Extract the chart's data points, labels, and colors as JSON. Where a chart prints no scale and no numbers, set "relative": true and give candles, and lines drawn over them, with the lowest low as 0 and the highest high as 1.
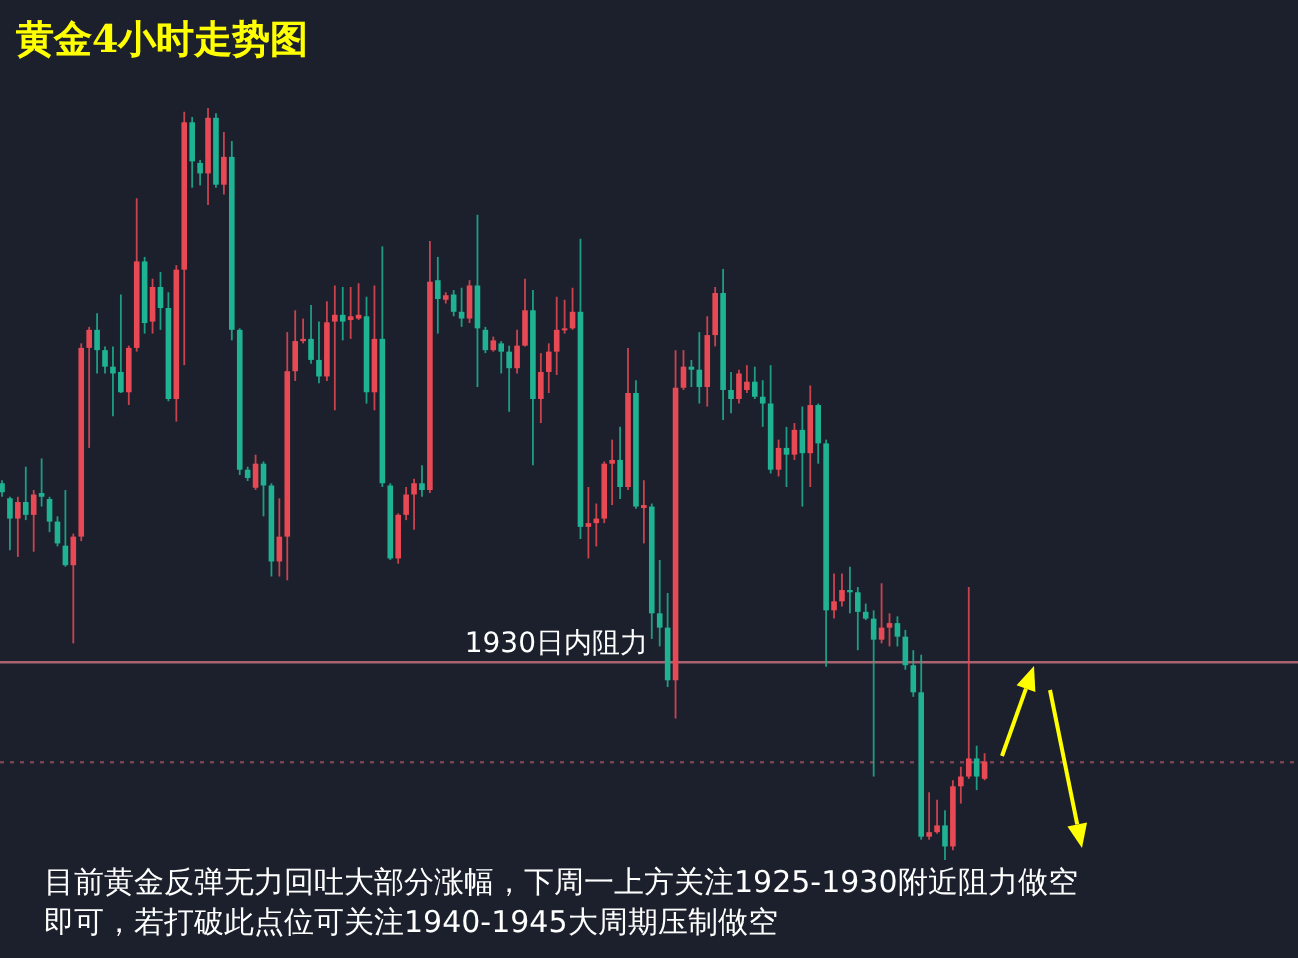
{
  "chart_data": {
    "type": "candlestick",
    "title": "黄金4小时走势图",
    "relative": true,
    "categories": [
      null,
      null,
      null,
      null,
      null,
      null,
      null,
      null,
      null,
      null,
      null,
      null,
      null,
      null,
      null,
      null,
      null,
      null,
      null,
      null,
      null,
      null,
      null,
      null,
      null,
      null,
      null,
      null,
      null,
      null,
      null,
      null,
      null,
      null,
      null,
      null,
      null,
      null,
      null,
      null,
      null,
      null,
      null,
      null,
      null,
      null,
      null,
      null,
      null,
      null,
      null,
      null,
      null,
      null,
      null,
      null,
      null,
      null,
      null,
      null,
      null,
      null,
      null,
      null,
      null,
      null,
      null,
      null,
      null,
      null,
      null,
      null,
      null,
      null,
      null,
      null,
      null,
      null,
      null,
      null,
      null,
      null,
      null,
      null,
      null,
      null,
      null,
      null,
      null,
      null,
      null,
      null,
      null,
      null,
      null,
      null,
      null,
      null,
      null,
      null,
      null,
      null,
      null,
      null,
      null,
      null,
      null,
      null,
      null,
      null,
      null,
      null,
      null,
      null,
      null,
      null,
      null,
      null,
      null,
      null,
      null,
      null,
      null,
      null,
      null
    ],
    "ohlc": [
      [
        0.501,
        0.505,
        0.483,
        0.489
      ],
      [
        0.481,
        0.483,
        0.412,
        0.454
      ],
      [
        0.454,
        0.483,
        0.403,
        0.476
      ],
      [
        0.476,
        0.523,
        0.452,
        0.459
      ],
      [
        0.459,
        0.492,
        0.41,
        0.486
      ],
      [
        0.488,
        0.534,
        0.47,
        0.483
      ],
      [
        0.48,
        0.483,
        0.436,
        0.45
      ],
      [
        0.45,
        0.457,
        0.417,
        0.421
      ],
      [
        0.418,
        0.492,
        0.39,
        0.392
      ],
      [
        0.392,
        0.434,
        0.288,
        0.43
      ],
      [
        0.43,
        0.687,
        0.424,
        0.681
      ],
      [
        0.681,
        0.709,
        0.548,
        0.705
      ],
      [
        0.705,
        0.727,
        0.647,
        0.678
      ],
      [
        0.678,
        0.683,
        0.647,
        0.656
      ],
      [
        0.656,
        0.683,
        0.59,
        0.647
      ],
      [
        0.649,
        0.752,
        0.621,
        0.622
      ],
      [
        0.622,
        0.684,
        0.605,
        0.681
      ],
      [
        0.681,
        0.88,
        0.676,
        0.796
      ],
      [
        0.796,
        0.802,
        0.7,
        0.714
      ],
      [
        0.716,
        0.773,
        0.7,
        0.762
      ],
      [
        0.762,
        0.782,
        0.705,
        0.734
      ],
      [
        0.734,
        0.755,
        0.61,
        0.613
      ],
      [
        0.613,
        0.791,
        0.583,
        0.785
      ],
      [
        0.785,
        0.995,
        0.658,
        0.981
      ],
      [
        0.981,
        0.988,
        0.894,
        0.929
      ],
      [
        0.927,
        0.931,
        0.897,
        0.913
      ],
      [
        0.913,
        1.0,
        0.871,
        0.987
      ],
      [
        0.987,
        0.993,
        0.894,
        0.898
      ],
      [
        0.898,
        0.968,
        0.885,
        0.935
      ],
      [
        0.935,
        0.956,
        0.691,
        0.705
      ],
      [
        0.705,
        0.707,
        0.512,
        0.519
      ],
      [
        0.519,
        0.523,
        0.504,
        0.508
      ],
      [
        0.495,
        0.539,
        0.492,
        0.527
      ],
      [
        0.527,
        0.53,
        0.457,
        0.498
      ],
      [
        0.498,
        0.501,
        0.377,
        0.397
      ],
      [
        0.397,
        0.481,
        0.377,
        0.43
      ],
      [
        0.43,
        0.702,
        0.372,
        0.65
      ],
      [
        0.65,
        0.731,
        0.637,
        0.69
      ],
      [
        0.69,
        0.72,
        0.687,
        0.693
      ],
      [
        0.693,
        0.738,
        0.66,
        0.665
      ],
      [
        0.665,
        0.716,
        0.634,
        0.643
      ],
      [
        0.643,
        0.743,
        0.637,
        0.715
      ],
      [
        0.716,
        0.764,
        0.598,
        0.725
      ],
      [
        0.725,
        0.762,
        0.691,
        0.716
      ],
      [
        0.718,
        0.762,
        0.693,
        0.723
      ],
      [
        0.72,
        0.767,
        0.718,
        0.725
      ],
      [
        0.723,
        0.749,
        0.607,
        0.622
      ],
      [
        0.622,
        0.764,
        0.598,
        0.693
      ],
      [
        0.693,
        0.816,
        0.496,
        0.501
      ],
      [
        0.498,
        0.501,
        0.399,
        0.401
      ],
      [
        0.401,
        0.461,
        0.394,
        0.459
      ],
      [
        0.459,
        0.496,
        0.452,
        0.486
      ],
      [
        0.486,
        0.507,
        0.439,
        0.501
      ],
      [
        0.501,
        0.525,
        0.483,
        0.492
      ],
      [
        0.492,
        0.823,
        0.488,
        0.769
      ],
      [
        0.771,
        0.802,
        0.7,
        0.746
      ],
      [
        0.745,
        0.755,
        0.74,
        0.751
      ],
      [
        0.752,
        0.758,
        0.723,
        0.729
      ],
      [
        0.729,
        0.761,
        0.709,
        0.72
      ],
      [
        0.72,
        0.771,
        0.714,
        0.764
      ],
      [
        0.764,
        0.858,
        0.629,
        0.707
      ],
      [
        0.705,
        0.709,
        0.674,
        0.678
      ],
      [
        0.678,
        0.696,
        0.676,
        0.691
      ],
      [
        0.687,
        0.69,
        0.647,
        0.676
      ],
      [
        0.676,
        0.684,
        0.596,
        0.654
      ],
      [
        0.654,
        0.705,
        0.647,
        0.684
      ],
      [
        0.684,
        0.773,
        0.683,
        0.731
      ],
      [
        0.731,
        0.758,
        0.525,
        0.613
      ],
      [
        0.613,
        0.674,
        0.581,
        0.649
      ],
      [
        0.649,
        0.687,
        0.621,
        0.676
      ],
      [
        0.676,
        0.749,
        0.645,
        0.705
      ],
      [
        0.705,
        0.745,
        0.7,
        0.707
      ],
      [
        0.707,
        0.761,
        0.705,
        0.729
      ],
      [
        0.729,
        0.826,
        0.427,
        0.443
      ],
      [
        0.443,
        0.496,
        0.401,
        0.448
      ],
      [
        0.448,
        0.474,
        0.417,
        0.454
      ],
      [
        0.454,
        0.53,
        0.448,
        0.527
      ],
      [
        0.527,
        0.559,
        0.472,
        0.532
      ],
      [
        0.532,
        0.576,
        0.48,
        0.496
      ],
      [
        0.496,
        0.681,
        0.492,
        0.621
      ],
      [
        0.621,
        0.638,
        0.467,
        0.47
      ],
      [
        0.468,
        0.505,
        0.421,
        0.472
      ],
      [
        0.47,
        0.474,
        0.294,
        0.328
      ],
      [
        0.328,
        0.399,
        0.284,
        0.309
      ],
      [
        0.309,
        0.355,
        0.23,
        0.239
      ],
      [
        0.239,
        0.678,
        0.188,
        0.628
      ],
      [
        0.628,
        0.678,
        0.625,
        0.656
      ],
      [
        0.656,
        0.665,
        0.629,
        0.652
      ],
      [
        0.652,
        0.702,
        0.607,
        0.629
      ],
      [
        0.629,
        0.723,
        0.603,
        0.698
      ],
      [
        0.698,
        0.762,
        0.683,
        0.754
      ],
      [
        0.754,
        0.786,
        0.585,
        0.625
      ],
      [
        0.625,
        0.649,
        0.594,
        0.613
      ],
      [
        0.613,
        0.652,
        0.607,
        0.647
      ],
      [
        0.625,
        0.658,
        0.621,
        0.636
      ],
      [
        0.636,
        0.656,
        0.613,
        0.616
      ],
      [
        0.616,
        0.638,
        0.576,
        0.607
      ],
      [
        0.607,
        0.658,
        0.514,
        0.519
      ],
      [
        0.519,
        0.559,
        0.51,
        0.548
      ],
      [
        0.548,
        0.576,
        0.496,
        0.539
      ],
      [
        0.539,
        0.581,
        0.532,
        0.572
      ],
      [
        0.572,
        0.603,
        0.47,
        0.541
      ],
      [
        0.541,
        0.631,
        0.496,
        0.605
      ],
      [
        0.605,
        0.607,
        0.527,
        0.554
      ],
      [
        0.554,
        0.559,
        0.257,
        0.332
      ],
      [
        0.332,
        0.381,
        0.321,
        0.344
      ],
      [
        0.344,
        0.381,
        0.337,
        0.359
      ],
      [
        0.359,
        0.39,
        0.328,
        0.356
      ],
      [
        0.356,
        0.363,
        0.279,
        0.33
      ],
      [
        0.33,
        0.341,
        0.319,
        0.321
      ],
      [
        0.321,
        0.332,
        0.111,
        0.293
      ],
      [
        0.293,
        0.368,
        0.288,
        0.309
      ],
      [
        0.309,
        0.328,
        0.284,
        0.315
      ],
      [
        0.315,
        0.324,
        0.284,
        0.297
      ],
      [
        0.297,
        0.306,
        0.253,
        0.259
      ],
      [
        0.259,
        0.279,
        0.217,
        0.223
      ],
      [
        0.223,
        0.273,
        0.027,
        0.031
      ],
      [
        0.031,
        0.09,
        0.027,
        0.037
      ],
      [
        0.037,
        0.08,
        0.035,
        0.046
      ],
      [
        0.046,
        0.066,
        0.0,
        0.018
      ],
      [
        0.018,
        0.106,
        0.013,
        0.098
      ],
      [
        0.098,
        0.124,
        0.075,
        0.111
      ],
      [
        0.111,
        0.363,
        0.108,
        0.135
      ],
      [
        0.135,
        0.152,
        0.093,
        0.111
      ],
      [
        0.108,
        0.142,
        0.106,
        0.131
      ]
    ],
    "ref_lines": [
      {
        "axis": "y",
        "value": 0.263,
        "label": "1930日内阻力",
        "color": "#a86270"
      },
      {
        "axis": "y",
        "value": 0.13,
        "color": "#7a4250",
        "line_style": "dotted"
      }
    ],
    "annotations": [
      "目前黄金反弹无力回吐大部分涨幅，下周一上方关注1925-1930附近阻力做空",
      "即可，若打破此点位可关注1940-1945大周期压制做空"
    ]
  }
}
